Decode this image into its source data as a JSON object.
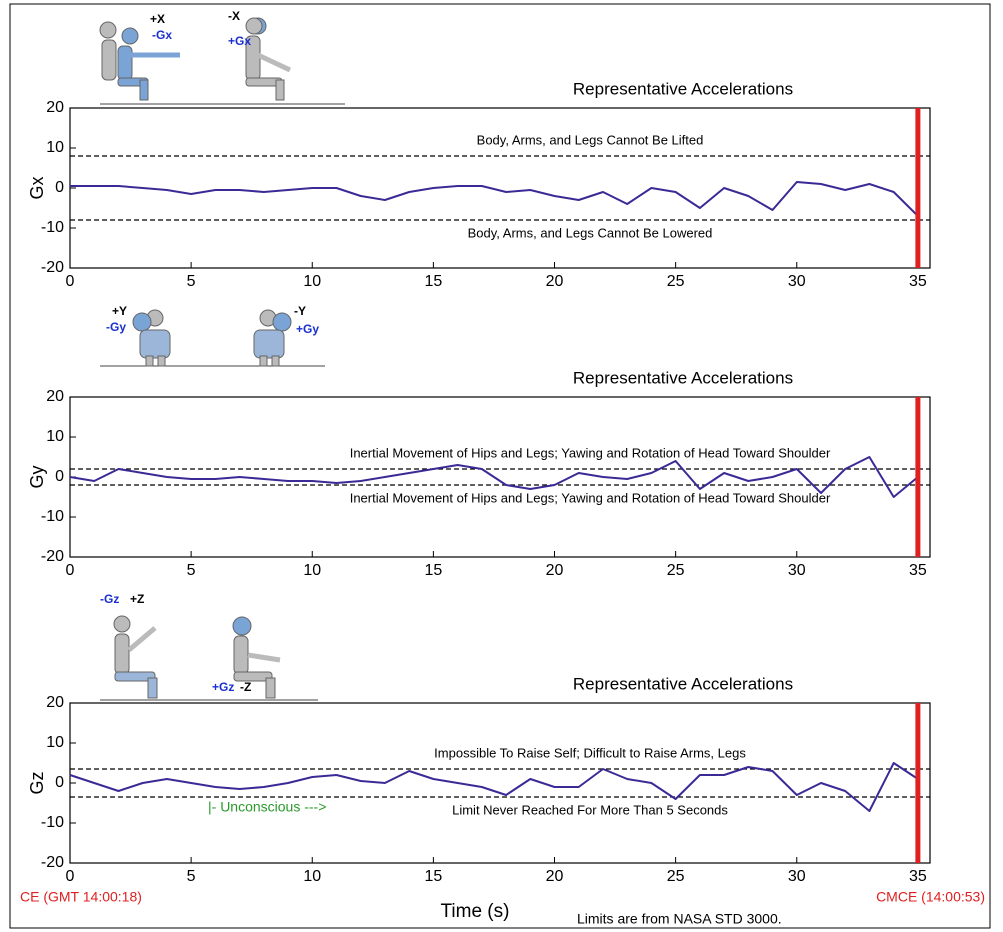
{
  "chart_data": [
    {
      "type": "line",
      "title": "Representative Accelerations",
      "y_label": "Gx",
      "x": [
        0,
        1,
        2,
        3,
        4,
        5,
        6,
        7,
        8,
        9,
        10,
        11,
        12,
        13,
        14,
        15,
        16,
        17,
        18,
        19,
        20,
        21,
        22,
        23,
        24,
        25,
        26,
        27,
        28,
        29,
        30,
        31,
        32,
        33,
        34,
        35
      ],
      "series": [
        {
          "color": "#3b2a96",
          "values": [
            0.5,
            0.5,
            0.5,
            0,
            -0.5,
            -1.5,
            -0.5,
            -0.5,
            -1,
            -0.5,
            0,
            0,
            -2,
            -3,
            -1,
            0,
            0.5,
            0.5,
            -1,
            -0.5,
            -2,
            -3,
            -1,
            -4,
            0,
            -1,
            -5,
            0,
            -2,
            -5.5,
            1.5,
            1,
            -0.5,
            1,
            -1,
            -7
          ]
        }
      ],
      "xlim": [
        0,
        35.5
      ],
      "xticks": [
        0,
        5,
        10,
        15,
        20,
        25,
        30,
        35
      ],
      "ylim": [
        -20,
        20
      ],
      "yticks": [
        -20,
        -10,
        0,
        10,
        20
      ],
      "hlines": [
        {
          "y": 8,
          "label": "Body, Arms, and Legs Cannot Be Lifted"
        },
        {
          "y": -8,
          "label": "Body, Arms, and Legs Cannot Be Lowered"
        }
      ],
      "vline": {
        "x": 35,
        "color": "#e02020"
      },
      "illustration_labels": [
        {
          "text": "+X",
          "color": "#000000"
        },
        {
          "text": "-Gx",
          "color": "#1a2fd0"
        },
        {
          "text": "-X",
          "color": "#000000"
        },
        {
          "text": "+Gx",
          "color": "#1a2fd0"
        }
      ]
    },
    {
      "type": "line",
      "title": "Representative Accelerations",
      "y_label": "Gy",
      "x": [
        0,
        1,
        2,
        3,
        4,
        5,
        6,
        7,
        8,
        9,
        10,
        11,
        12,
        13,
        14,
        15,
        16,
        17,
        18,
        19,
        20,
        21,
        22,
        23,
        24,
        25,
        26,
        27,
        28,
        29,
        30,
        31,
        32,
        33,
        34,
        35
      ],
      "series": [
        {
          "color": "#3b2a96",
          "values": [
            0,
            -1,
            2,
            1,
            0,
            -0.5,
            -0.5,
            0,
            -0.5,
            -1,
            -1,
            -1.5,
            -1,
            0,
            1,
            2,
            3,
            2,
            -2,
            -3,
            -2,
            1,
            0,
            -0.5,
            1,
            4,
            -3,
            1,
            -1,
            0,
            2,
            -4,
            2,
            5,
            -5,
            0
          ]
        }
      ],
      "xlim": [
        0,
        35.5
      ],
      "xticks": [
        0,
        5,
        10,
        15,
        20,
        25,
        30,
        35
      ],
      "ylim": [
        -20,
        20
      ],
      "yticks": [
        -20,
        -10,
        0,
        10,
        20
      ],
      "hlines": [
        {
          "y": 2,
          "label": "Inertial Movement of Hips and Legs; Yawing and Rotation of Head Toward Shoulder"
        },
        {
          "y": -2,
          "label": "Inertial Movement of Hips and Legs; Yawing and Rotation of Head Toward Shoulder"
        }
      ],
      "vline": {
        "x": 35,
        "color": "#e02020"
      },
      "illustration_labels": [
        {
          "text": "+Y",
          "color": "#000000"
        },
        {
          "text": "-Gy",
          "color": "#1a2fd0"
        },
        {
          "text": "-Y",
          "color": "#000000"
        },
        {
          "text": "+Gy",
          "color": "#1a2fd0"
        }
      ]
    },
    {
      "type": "line",
      "title": "Representative Accelerations",
      "y_label": "Gz",
      "x": [
        0,
        1,
        2,
        3,
        4,
        5,
        6,
        7,
        8,
        9,
        10,
        11,
        12,
        13,
        14,
        15,
        16,
        17,
        18,
        19,
        20,
        21,
        22,
        23,
        24,
        25,
        26,
        27,
        28,
        29,
        30,
        31,
        32,
        33,
        34,
        35
      ],
      "series": [
        {
          "color": "#3b2a96",
          "values": [
            2,
            0,
            -2,
            0,
            1,
            0,
            -1,
            -1.5,
            -1,
            0,
            1.5,
            2,
            0.5,
            0,
            3,
            1,
            0,
            -1,
            -3,
            1,
            -1,
            -1,
            3.5,
            1,
            0,
            -4,
            2,
            2,
            4,
            3,
            -3,
            0,
            -2,
            -7,
            5,
            1
          ]
        }
      ],
      "xlim": [
        0,
        35.5
      ],
      "xticks": [
        0,
        5,
        10,
        15,
        20,
        25,
        30,
        35
      ],
      "ylim": [
        -20,
        20
      ],
      "yticks": [
        -20,
        -10,
        0,
        10,
        20
      ],
      "hlines": [
        {
          "y": 3.5,
          "label": "Impossible To Raise Self; Difficult to Raise Arms, Legs"
        },
        {
          "y": -3.5,
          "label": "Limit Never Reached For More Than 5 Seconds"
        }
      ],
      "vline": {
        "x": 35,
        "color": "#e02020"
      },
      "annotation": "|- Unconscious --->",
      "illustration_labels": [
        {
          "text": "-Gz",
          "color": "#1a2fd0"
        },
        {
          "text": "+Z",
          "color": "#000000"
        },
        {
          "text": "+Gz",
          "color": "#1a2fd0"
        },
        {
          "text": "-Z",
          "color": "#000000"
        }
      ]
    }
  ],
  "footer": {
    "x_label": "Time (s)",
    "start_label": "CE (GMT 14:00:18)",
    "end_label": "CMCE (14:00:53)",
    "note": "Limits are from NASA STD 3000."
  }
}
